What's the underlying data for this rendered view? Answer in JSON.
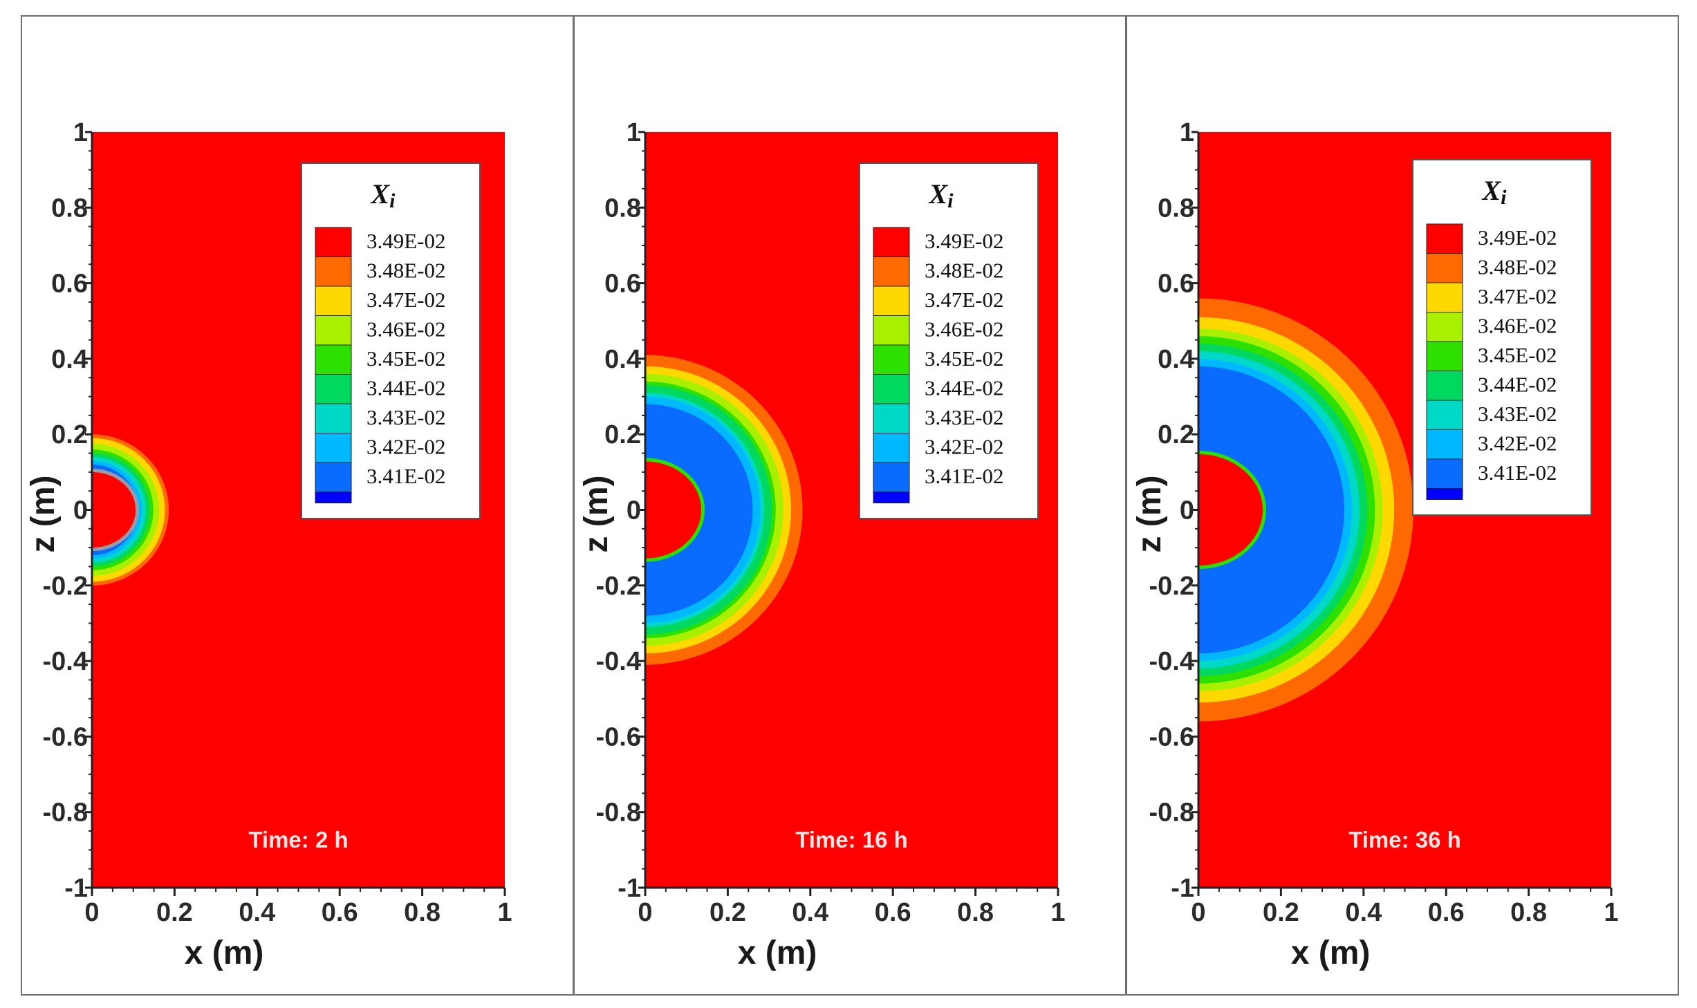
{
  "chart_data": [
    {
      "type": "contour",
      "panel": 1,
      "xlabel": "x (m)",
      "ylabel": "z (m)",
      "xlim": [
        0,
        1
      ],
      "ylim": [
        -1,
        1
      ],
      "x_ticks": [
        "0",
        "0.2",
        "0.4",
        "0.6",
        "0.8",
        "1"
      ],
      "y_ticks": [
        "1",
        "0.8",
        "0.6",
        "0.4",
        "0.2",
        "0",
        "-0.2",
        "-0.4",
        "-0.6",
        "-0.8",
        "-1"
      ],
      "legend_title": "Xi",
      "legend_levels": [
        "3.49E-02",
        "3.48E-02",
        "3.47E-02",
        "3.46E-02",
        "3.45E-02",
        "3.44E-02",
        "3.43E-02",
        "3.42E-02",
        "3.41E-02"
      ],
      "annotation": "Time: 2 h",
      "contour_radii_m": [
        0.2,
        0.19,
        0.175,
        0.16,
        0.15,
        0.14,
        0.13,
        0.12
      ],
      "inner_core_radius_m": 0.11
    },
    {
      "type": "contour",
      "panel": 2,
      "xlabel": "x (m)",
      "ylabel": "z (m)",
      "xlim": [
        0,
        1
      ],
      "ylim": [
        -1,
        1
      ],
      "x_ticks": [
        "0",
        "0.2",
        "0.4",
        "0.6",
        "0.8",
        "1"
      ],
      "y_ticks": [
        "1",
        "0.8",
        "0.6",
        "0.4",
        "0.2",
        "0",
        "-0.2",
        "-0.4",
        "-0.6",
        "-0.8",
        "-1"
      ],
      "legend_title": "Xi",
      "legend_levels": [
        "3.49E-02",
        "3.48E-02",
        "3.47E-02",
        "3.46E-02",
        "3.45E-02",
        "3.44E-02",
        "3.43E-02",
        "3.42E-02",
        "3.41E-02"
      ],
      "annotation": "Time: 16 h",
      "contour_radii_m": [
        0.41,
        0.38,
        0.36,
        0.34,
        0.33,
        0.31,
        0.3,
        0.28
      ],
      "inner_core_radius_m": 0.14
    },
    {
      "type": "contour",
      "panel": 3,
      "xlabel": "x (m)",
      "ylabel": "z (m)",
      "xlim": [
        0,
        1
      ],
      "ylim": [
        -1,
        1
      ],
      "x_ticks": [
        "0",
        "0.2",
        "0.4",
        "0.6",
        "0.8",
        "1"
      ],
      "y_ticks": [
        "1",
        "0.8",
        "0.6",
        "0.4",
        "0.2",
        "0",
        "-0.2",
        "-0.4",
        "-0.6",
        "-0.8",
        "-1"
      ],
      "legend_title": "Xi",
      "legend_levels": [
        "3.49E-02",
        "3.48E-02",
        "3.47E-02",
        "3.46E-02",
        "3.45E-02",
        "3.44E-02",
        "3.43E-02",
        "3.42E-02",
        "3.41E-02"
      ],
      "annotation": "Time: 36 h",
      "contour_radii_m": [
        0.56,
        0.51,
        0.48,
        0.46,
        0.44,
        0.42,
        0.4,
        0.38
      ],
      "inner_core_radius_m": 0.16
    }
  ],
  "colors": {
    "background_field": "#ff0000",
    "levels": [
      "#ff0000",
      "#ff6a00",
      "#ffd800",
      "#a8f000",
      "#2ee000",
      "#00d860",
      "#00d8c8",
      "#00b8ff",
      "#0a6cff",
      "#0000ff"
    ],
    "time_label": "#ffe4e4"
  }
}
